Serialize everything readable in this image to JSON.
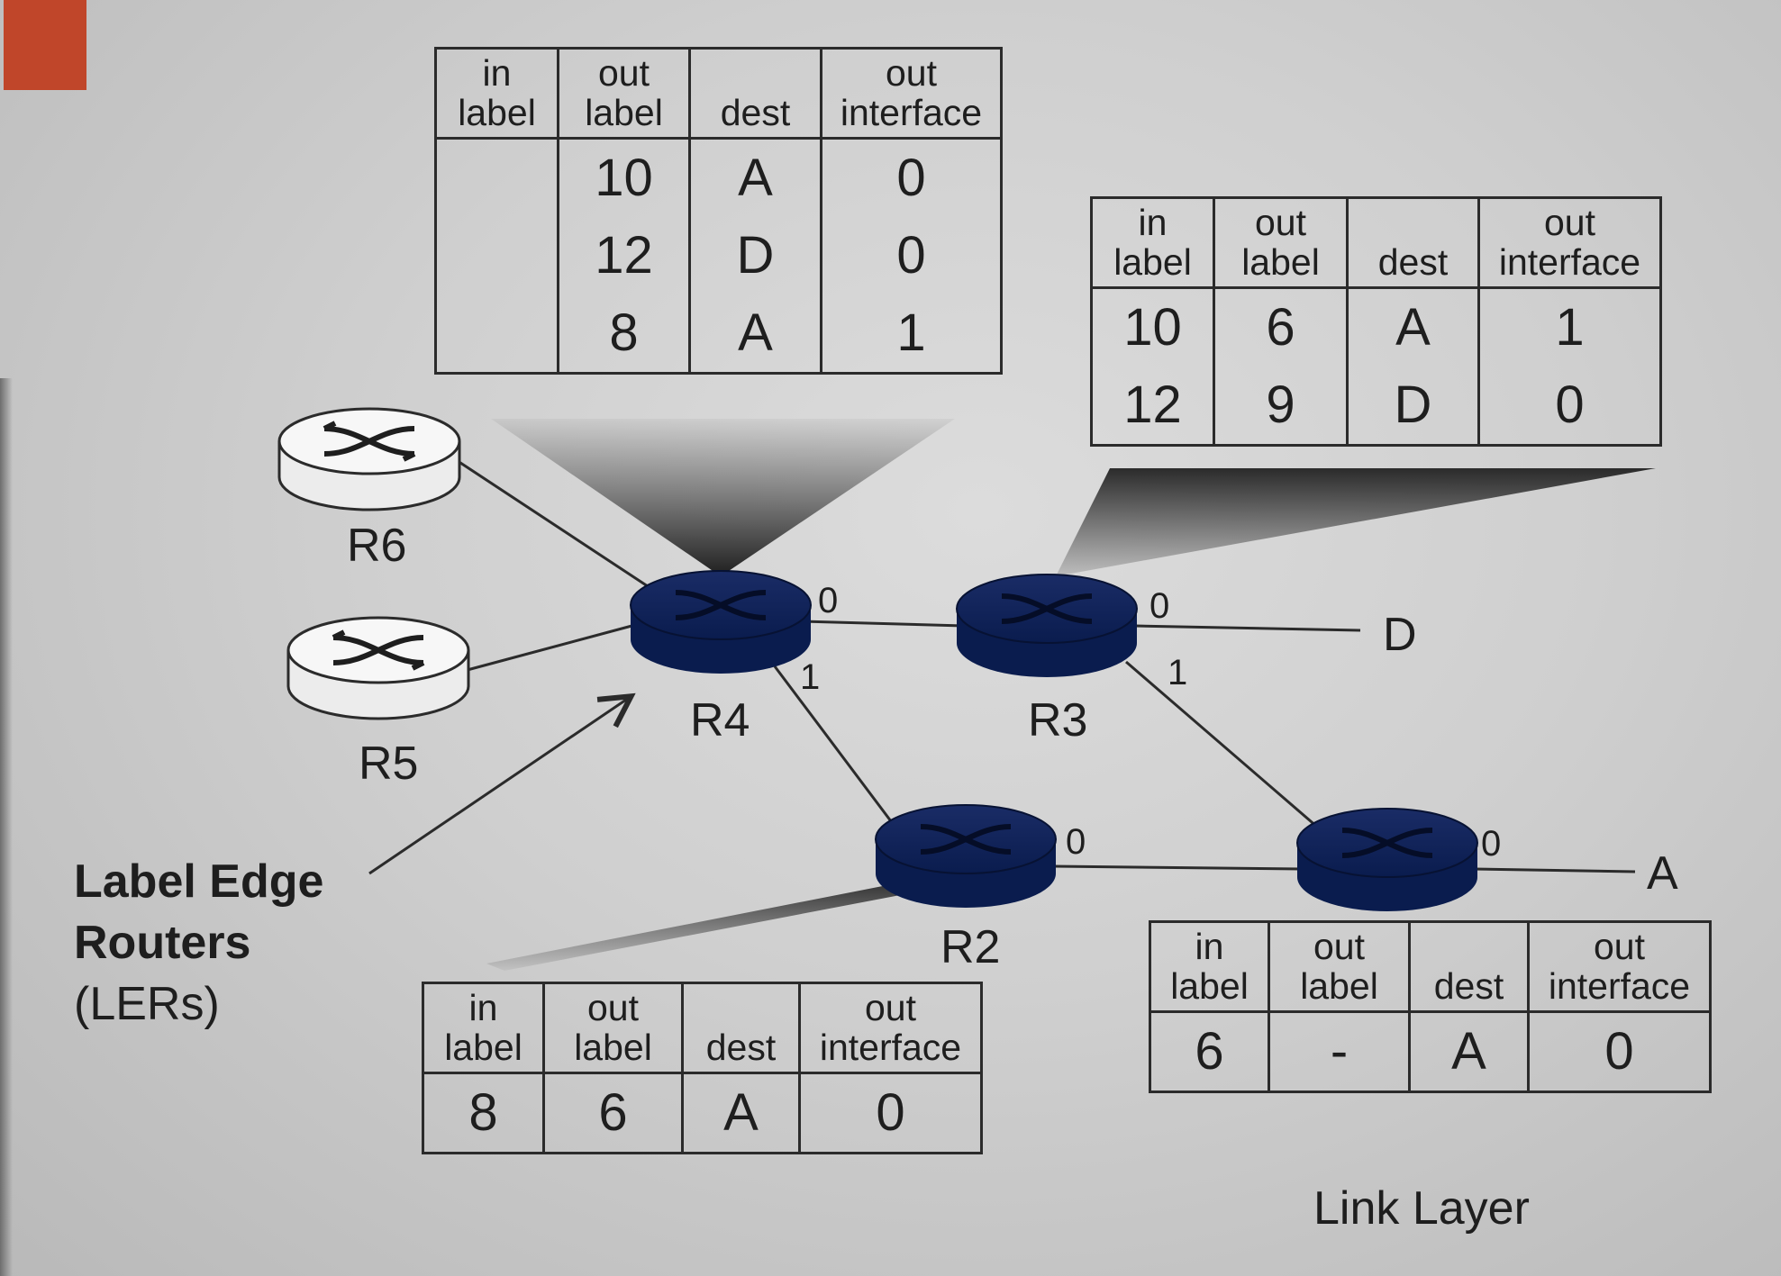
{
  "colors": {
    "background": "#d2d2d2",
    "edge_router": "#f0f0f0",
    "core_router": "#0a1c4e",
    "line": "#2b2b2b",
    "accent": "#c0462a"
  },
  "routers": [
    {
      "id": "R6",
      "label": "R6",
      "kind": "edge"
    },
    {
      "id": "R5",
      "label": "R5",
      "kind": "edge"
    },
    {
      "id": "R4",
      "label": "R4",
      "kind": "core"
    },
    {
      "id": "R3",
      "label": "R3",
      "kind": "core"
    },
    {
      "id": "R2",
      "label": "R2",
      "kind": "core"
    },
    {
      "id": "R1",
      "label": "",
      "kind": "core"
    }
  ],
  "ports": {
    "r4_0": "0",
    "r4_1": "1",
    "r3_0": "0",
    "r3_1": "1",
    "r2_0": "0",
    "r1_0": "0"
  },
  "destinations": {
    "d": "D",
    "a": "A"
  },
  "ler_caption": {
    "line1": "Label Edge",
    "line2": "Routers",
    "line3": "(LERs)"
  },
  "footer": "Link Layer",
  "table_headers": {
    "in_label": [
      "in",
      "label"
    ],
    "out_label": [
      "out",
      "label"
    ],
    "dest": [
      "",
      "dest"
    ],
    "out_interface": [
      "out",
      "interface"
    ]
  },
  "tables": {
    "r4": {
      "rows": [
        [
          "",
          "10",
          "A",
          "0"
        ],
        [
          "",
          "12",
          "D",
          "0"
        ],
        [
          "",
          "8",
          "A",
          "1"
        ]
      ]
    },
    "r3": {
      "rows": [
        [
          "10",
          "6",
          "A",
          "1"
        ],
        [
          "12",
          "9",
          "D",
          "0"
        ]
      ]
    },
    "r2": {
      "rows": [
        [
          "8",
          "6",
          "A",
          "0"
        ]
      ]
    },
    "r1": {
      "rows": [
        [
          "6",
          "-",
          "A",
          "0"
        ]
      ]
    }
  }
}
